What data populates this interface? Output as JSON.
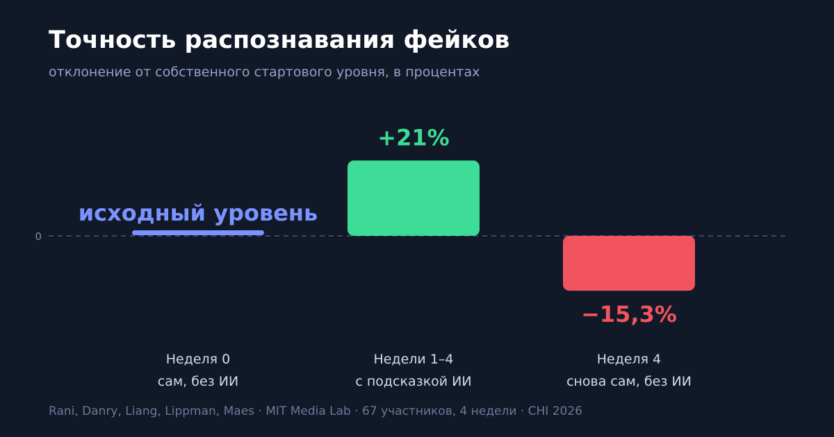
{
  "title": "Точность распознавания фейков",
  "subtitle": "отклонение от собственного стартового уровня, в процентах",
  "footer": "Rani, Danry, Liang, Lippman, Maes · MIT Media Lab · 67 участников, 4 недели · CHI 2026",
  "colors": {
    "background": "#111827",
    "baseline": "#7b93ff",
    "positive": "#3ddc97",
    "negative": "#f2545f",
    "zero_line": "#4b5a7a",
    "category_text": "#d4dbe8"
  },
  "chart_data": {
    "type": "bar",
    "zero_tick_label": "0",
    "baseline_label": "исходный уровень",
    "categories": [
      {
        "line1": "Неделя 0",
        "line2": "сам, без ИИ"
      },
      {
        "line1": "Недели 1–4",
        "line2": "с подсказкой ИИ"
      },
      {
        "line1": "Неделя 4",
        "line2": "снова сам, без ИИ"
      }
    ],
    "values": [
      0,
      21,
      -15.3
    ],
    "value_labels": [
      "",
      "+21%",
      "−15,3%"
    ]
  }
}
